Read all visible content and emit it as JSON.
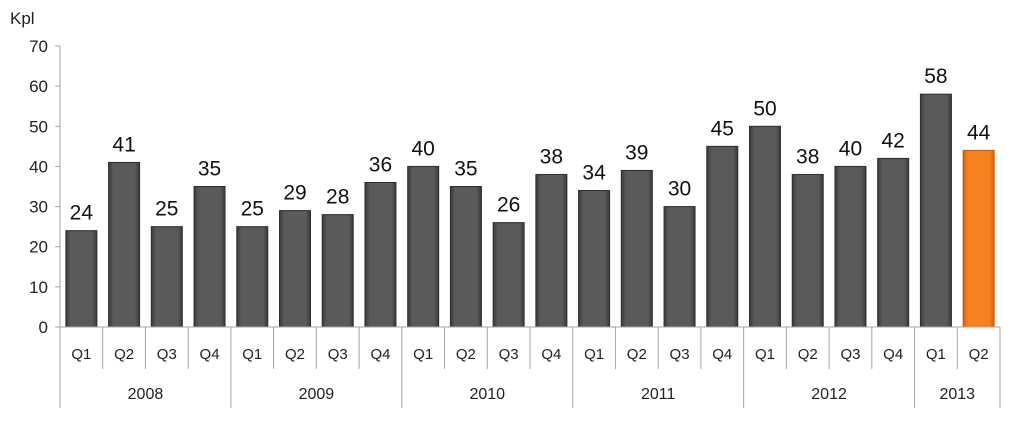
{
  "chart_data": {
    "type": "bar",
    "ylabel": "Kpl",
    "ylim": [
      0,
      70
    ],
    "yticks": [
      0,
      10,
      20,
      30,
      40,
      50,
      60,
      70
    ],
    "grid": false,
    "groups": [
      {
        "label": "2008",
        "size": 4
      },
      {
        "label": "2009",
        "size": 4
      },
      {
        "label": "2010",
        "size": 4
      },
      {
        "label": "2011",
        "size": 4
      },
      {
        "label": "2012",
        "size": 4
      },
      {
        "label": "2013",
        "size": 2
      }
    ],
    "categories": [
      "Q1",
      "Q2",
      "Q3",
      "Q4",
      "Q1",
      "Q2",
      "Q3",
      "Q4",
      "Q1",
      "Q2",
      "Q3",
      "Q4",
      "Q1",
      "Q2",
      "Q3",
      "Q4",
      "Q1",
      "Q2",
      "Q3",
      "Q4",
      "Q1",
      "Q2"
    ],
    "values": [
      24,
      41,
      25,
      35,
      25,
      29,
      28,
      36,
      40,
      35,
      26,
      38,
      34,
      39,
      30,
      45,
      50,
      38,
      40,
      42,
      58,
      44
    ],
    "bar_color": "#595959",
    "highlight_color": "#f07c1c",
    "highlight_index": 21
  }
}
